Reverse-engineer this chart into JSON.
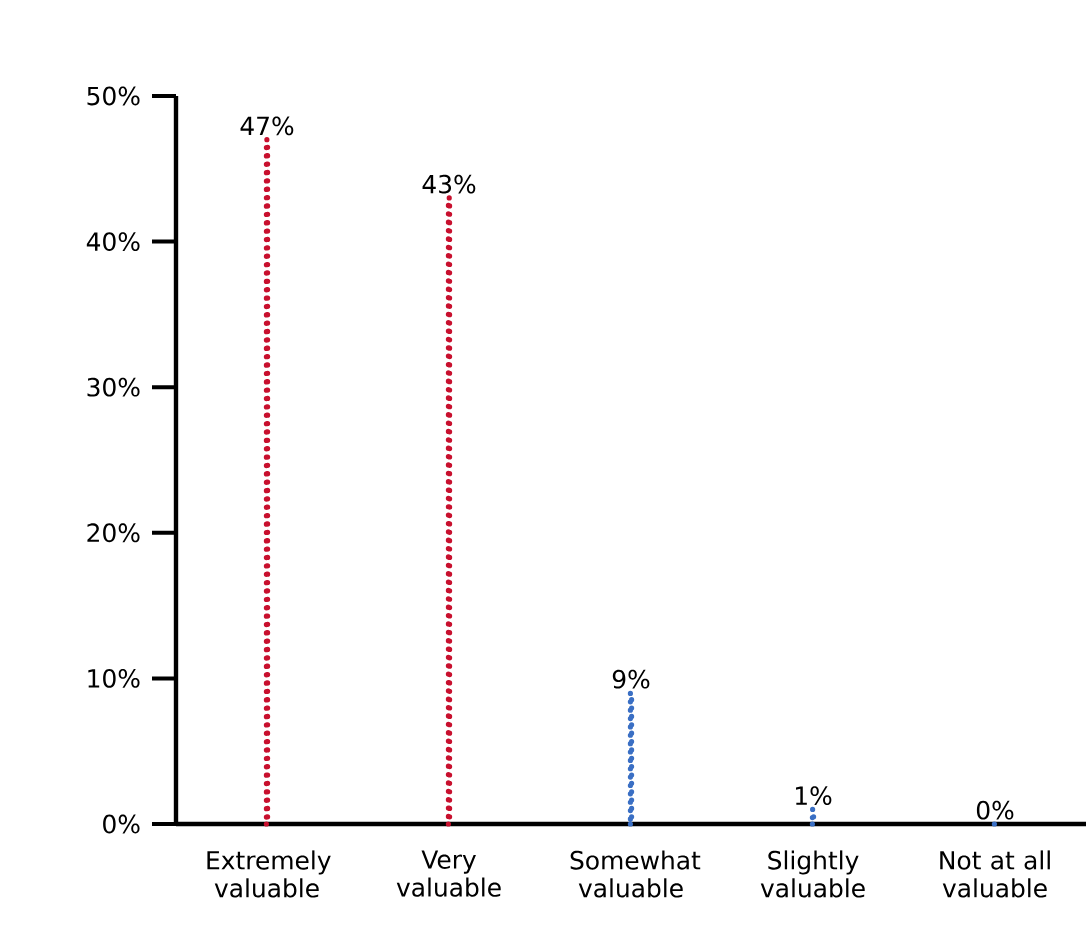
{
  "chart_data": {
    "type": "bar",
    "categories": [
      "Extremely valuable",
      "Very valuable",
      "Somewhat valuable",
      "Slightly valuable",
      "Not at all valuable"
    ],
    "values": [
      47,
      43,
      9,
      1,
      0
    ],
    "colors": [
      "#c8102e",
      "#c8102e",
      "#3a6fc4",
      "#3a6fc4",
      "#3a6fc4"
    ],
    "value_labels": [
      "47%",
      "43%",
      "9%",
      "1%",
      "0%"
    ],
    "ylim": [
      0,
      50
    ],
    "yticks": [
      {
        "value": 0,
        "label": "0%"
      },
      {
        "value": 10,
        "label": "10%"
      },
      {
        "value": 20,
        "label": "20%"
      },
      {
        "value": 30,
        "label": "30%"
      },
      {
        "value": 40,
        "label": "40%"
      },
      {
        "value": 50,
        "label": "50%"
      }
    ],
    "line_style": "dotted",
    "grid": false
  }
}
